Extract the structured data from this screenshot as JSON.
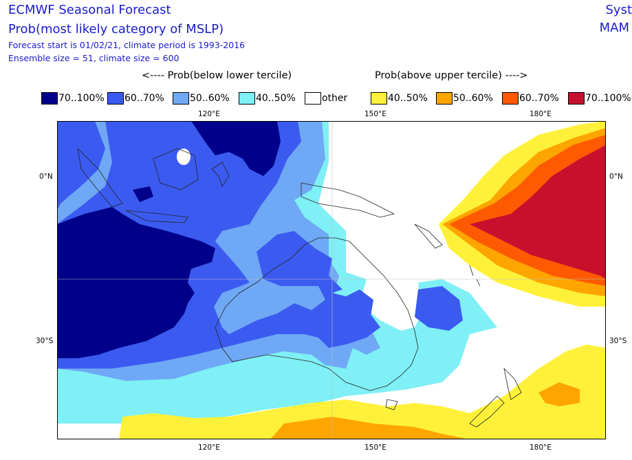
{
  "header": {
    "title": "ECMWF Seasonal Forecast",
    "subtitle": "Prob(most likely category of MSLP)",
    "forecast_line": "Forecast start is 01/02/21, climate period is 1993-2016",
    "ensemble_line": "Ensemble size = 51, climate size = 600",
    "right_top": "Syst",
    "right_period": "MAM"
  },
  "legend": {
    "below_heading": "<---- Prob(below lower tercile)",
    "above_heading": "Prob(above upper tercile) ---->",
    "items": [
      {
        "label": "70..100%",
        "color": "#00008b"
      },
      {
        "label": "60..70%",
        "color": "#3b5bf0"
      },
      {
        "label": "50..60%",
        "color": "#6fa8f5"
      },
      {
        "label": "40..50%",
        "color": "#7ff0f5"
      },
      {
        "label": "other",
        "color": "#ffffff"
      },
      {
        "label": "40..50%",
        "color": "#fff13a"
      },
      {
        "label": "50..60%",
        "color": "#ffa500"
      },
      {
        "label": "60..70%",
        "color": "#ff5a00"
      },
      {
        "label": "70..100%",
        "color": "#c8102e"
      }
    ]
  },
  "axes": {
    "top_lon": [
      "120°E",
      "150°E",
      "180°E"
    ],
    "bottom_lon": [
      "120°E",
      "150°E",
      "180°E"
    ],
    "left_lat": [
      "0°N",
      "30°S"
    ],
    "right_lat": [
      "0°N",
      "30°S"
    ]
  }
}
